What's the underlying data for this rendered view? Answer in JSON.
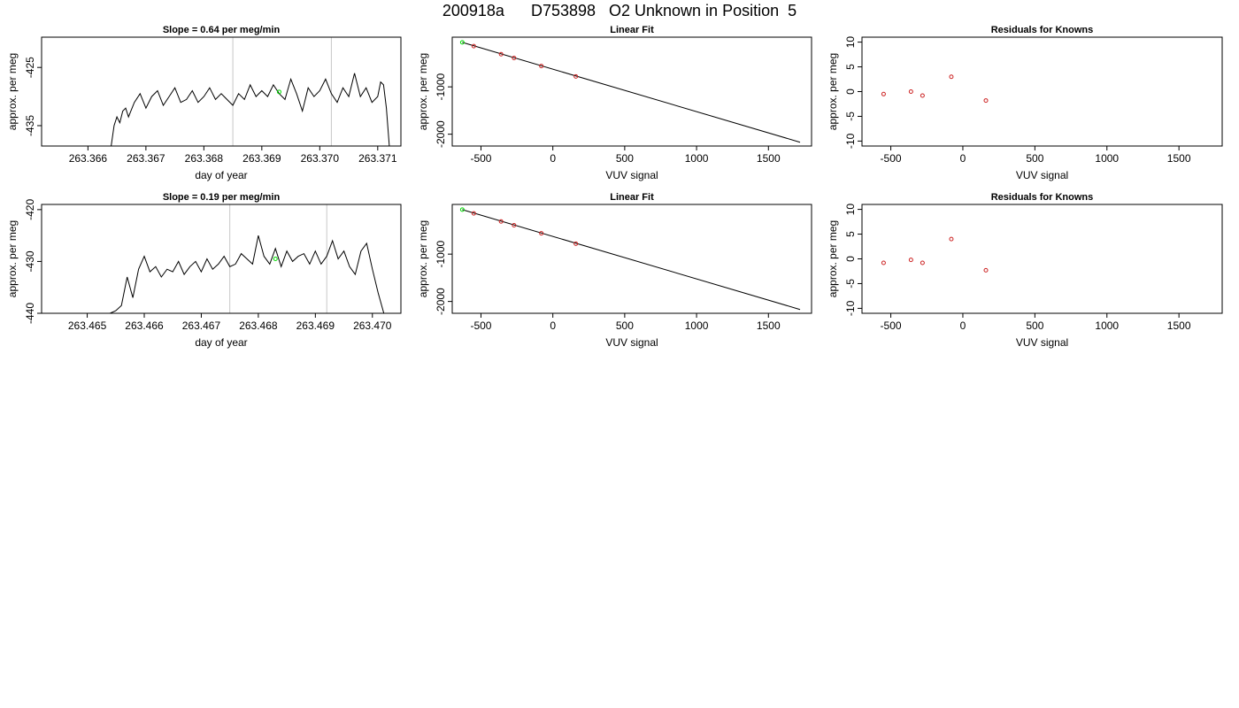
{
  "page_title": "200918a      D753898   O2 Unknown in Position  5",
  "chart_data": [
    {
      "id": "timeseries-1",
      "type": "line",
      "title": "Slope =  0.64  per meg/min",
      "xlabel": "day of year",
      "ylabel": "approx. per meg",
      "xlim": [
        263.3652,
        263.3714
      ],
      "ylim": [
        -438.5,
        -419.8
      ],
      "xticks": [
        263.366,
        263.367,
        263.368,
        263.369,
        263.37,
        263.371
      ],
      "xtick_labels": [
        "263.366",
        "263.367",
        "263.368",
        "263.369",
        "263.370",
        "263.371"
      ],
      "yticks": [
        -425,
        -435
      ],
      "ytick_labels": [
        "-425",
        "-435"
      ],
      "vlines": [
        263.3685,
        263.3702
      ],
      "marker": {
        "x": 263.3693,
        "y": -429.2,
        "color": "#00dd00"
      },
      "series": [
        {
          "x": [
            263.3664,
            263.36645,
            263.3665,
            263.36655,
            263.3666,
            263.36665,
            263.3667,
            263.3668,
            263.3669,
            263.367,
            263.3671,
            263.3672,
            263.3673,
            263.3674,
            263.3675,
            263.3676,
            263.3677,
            263.3678,
            263.3679,
            263.368,
            263.3681,
            263.3682,
            263.3683,
            263.3684,
            263.3685,
            263.3686,
            263.3687,
            263.3688,
            263.3689,
            263.369,
            263.3691,
            263.3692,
            263.3693,
            263.3694,
            263.3695,
            263.3696,
            263.3697,
            263.3698,
            263.3699,
            263.37,
            263.3701,
            263.3702,
            263.3703,
            263.3704,
            263.3705,
            263.3706,
            263.3707,
            263.3708,
            263.3709,
            263.371,
            263.37105,
            263.3711,
            263.37115,
            263.3712
          ],
          "y": [
            -438.5,
            -435.0,
            -433.5,
            -434.5,
            -432.5,
            -432.0,
            -433.5,
            -431.0,
            -429.5,
            -432.0,
            -430.0,
            -429.0,
            -431.5,
            -430.0,
            -428.5,
            -431.0,
            -430.5,
            -429.0,
            -431.0,
            -430.0,
            -428.5,
            -430.5,
            -429.5,
            -430.5,
            -431.5,
            -429.5,
            -430.5,
            -428.0,
            -430.0,
            -429.0,
            -430.0,
            -428.0,
            -429.5,
            -430.5,
            -427.0,
            -429.5,
            -432.5,
            -428.5,
            -430.0,
            -429.0,
            -427.0,
            -429.5,
            -431.0,
            -428.5,
            -430.0,
            -426.0,
            -430.0,
            -428.5,
            -431.0,
            -430.0,
            -427.5,
            -428.0,
            -432.0,
            -438.5
          ]
        }
      ]
    },
    {
      "id": "linear-fit-1",
      "type": "scatter",
      "title": "Linear Fit",
      "xlabel": "VUV signal",
      "ylabel": "approx. per meg",
      "xlim": [
        -700,
        1800
      ],
      "ylim": [
        -2250,
        50
      ],
      "xticks": [
        -500,
        0,
        500,
        1000,
        1500
      ],
      "xtick_labels": [
        "-500",
        "0",
        "500",
        "1000",
        "1500"
      ],
      "yticks": [
        -1000,
        -2000
      ],
      "ytick_labels": [
        "-1000",
        "-2000"
      ],
      "fit_line": {
        "x": [
          -630,
          1720
        ],
        "y": [
          -60,
          -2170
        ]
      },
      "points": [
        {
          "x": -550,
          "y": -140,
          "color": "#cc2222"
        },
        {
          "x": -360,
          "y": -310,
          "color": "#cc2222"
        },
        {
          "x": -270,
          "y": -390,
          "color": "#cc2222"
        },
        {
          "x": -80,
          "y": -560,
          "color": "#cc2222"
        },
        {
          "x": 160,
          "y": -780,
          "color": "#cc2222"
        },
        {
          "x": -630,
          "y": -60,
          "color": "#00dd00"
        }
      ]
    },
    {
      "id": "residuals-1",
      "type": "scatter",
      "title": "Residuals for Knowns",
      "xlabel": "VUV signal",
      "ylabel": "approx. per meg",
      "xlim": [
        -700,
        1800
      ],
      "ylim": [
        -11,
        11
      ],
      "xticks": [
        -500,
        0,
        500,
        1000,
        1500
      ],
      "xtick_labels": [
        "-500",
        "0",
        "500",
        "1000",
        "1500"
      ],
      "yticks": [
        10,
        5,
        0,
        -5,
        -10
      ],
      "ytick_labels": [
        "10",
        "5",
        "0",
        "-5",
        "-10"
      ],
      "points": [
        {
          "x": -550,
          "y": -0.5,
          "color": "#cc2222"
        },
        {
          "x": -360,
          "y": 0.0,
          "color": "#cc2222"
        },
        {
          "x": -280,
          "y": -0.8,
          "color": "#cc2222"
        },
        {
          "x": -80,
          "y": 3.0,
          "color": "#cc2222"
        },
        {
          "x": 160,
          "y": -1.8,
          "color": "#cc2222"
        }
      ]
    },
    {
      "id": "timeseries-2",
      "type": "line",
      "title": "Slope =  0.19  per meg/min",
      "xlabel": "day of year",
      "ylabel": "approx. per meg",
      "xlim": [
        263.4642,
        263.4705
      ],
      "ylim": [
        -440,
        -419
      ],
      "xticks": [
        263.465,
        263.466,
        263.467,
        263.468,
        263.469,
        263.47
      ],
      "xtick_labels": [
        "263.465",
        "263.466",
        "263.467",
        "263.468",
        "263.469",
        "263.470"
      ],
      "yticks": [
        -420,
        -430,
        -440
      ],
      "ytick_labels": [
        "-420",
        "-430",
        "-440"
      ],
      "vlines": [
        263.4675,
        263.4692
      ],
      "marker": {
        "x": 263.4683,
        "y": -429.5,
        "color": "#00dd00"
      },
      "series": [
        {
          "x": [
            263.4654,
            263.4655,
            263.4656,
            263.4657,
            263.4658,
            263.4659,
            263.466,
            263.4661,
            263.4662,
            263.4663,
            263.4664,
            263.4665,
            263.4666,
            263.4667,
            263.4668,
            263.4669,
            263.467,
            263.4671,
            263.4672,
            263.4673,
            263.4674,
            263.4675,
            263.4676,
            263.4677,
            263.4678,
            263.4679,
            263.468,
            263.4681,
            263.4682,
            263.4683,
            263.4684,
            263.4685,
            263.4686,
            263.4687,
            263.4688,
            263.4689,
            263.469,
            263.4691,
            263.4692,
            263.4693,
            263.4694,
            263.4695,
            263.4696,
            263.4697,
            263.4698,
            263.4699,
            263.47,
            263.4701,
            263.4702
          ],
          "y": [
            -440.0,
            -439.5,
            -438.5,
            -433.0,
            -437.0,
            -431.5,
            -429.0,
            -432.0,
            -431.0,
            -433.0,
            -431.5,
            -432.0,
            -430.0,
            -432.5,
            -431.0,
            -430.0,
            -432.0,
            -429.5,
            -431.5,
            -430.5,
            -429.0,
            -431.0,
            -430.5,
            -428.5,
            -429.5,
            -430.5,
            -425.0,
            -429.0,
            -430.5,
            -427.5,
            -431.0,
            -428.0,
            -430.0,
            -429.0,
            -428.5,
            -430.5,
            -428.0,
            -430.5,
            -429.0,
            -426.0,
            -429.5,
            -428.0,
            -431.0,
            -432.5,
            -428.0,
            -426.5,
            -431.5,
            -436.0,
            -440.0
          ]
        }
      ]
    },
    {
      "id": "linear-fit-2",
      "type": "scatter",
      "title": "Linear Fit",
      "xlabel": "VUV signal",
      "ylabel": "approx. per meg",
      "xlim": [
        -700,
        1800
      ],
      "ylim": [
        -2250,
        50
      ],
      "xticks": [
        -500,
        0,
        500,
        1000,
        1500
      ],
      "xtick_labels": [
        "-500",
        "0",
        "500",
        "1000",
        "1500"
      ],
      "yticks": [
        -1000,
        -2000
      ],
      "ytick_labels": [
        "-1000",
        "-2000"
      ],
      "fit_line": {
        "x": [
          -630,
          1720
        ],
        "y": [
          -60,
          -2170
        ]
      },
      "points": [
        {
          "x": -550,
          "y": -140,
          "color": "#cc2222"
        },
        {
          "x": -360,
          "y": -310,
          "color": "#cc2222"
        },
        {
          "x": -270,
          "y": -390,
          "color": "#cc2222"
        },
        {
          "x": -80,
          "y": -560,
          "color": "#cc2222"
        },
        {
          "x": 160,
          "y": -780,
          "color": "#cc2222"
        },
        {
          "x": -630,
          "y": -60,
          "color": "#00dd00"
        }
      ]
    },
    {
      "id": "residuals-2",
      "type": "scatter",
      "title": "Residuals for Knowns",
      "xlabel": "VUV signal",
      "ylabel": "approx. per meg",
      "xlim": [
        -700,
        1800
      ],
      "ylim": [
        -11,
        11
      ],
      "xticks": [
        -500,
        0,
        500,
        1000,
        1500
      ],
      "xtick_labels": [
        "-500",
        "0",
        "500",
        "1000",
        "1500"
      ],
      "yticks": [
        10,
        5,
        0,
        -5,
        -10
      ],
      "ytick_labels": [
        "10",
        "5",
        "0",
        "-5",
        "-10"
      ],
      "points": [
        {
          "x": -550,
          "y": -0.8,
          "color": "#cc2222"
        },
        {
          "x": -360,
          "y": -0.2,
          "color": "#cc2222"
        },
        {
          "x": -280,
          "y": -0.8,
          "color": "#cc2222"
        },
        {
          "x": -80,
          "y": 4.0,
          "color": "#cc2222"
        },
        {
          "x": 160,
          "y": -2.3,
          "color": "#cc2222"
        }
      ]
    }
  ]
}
